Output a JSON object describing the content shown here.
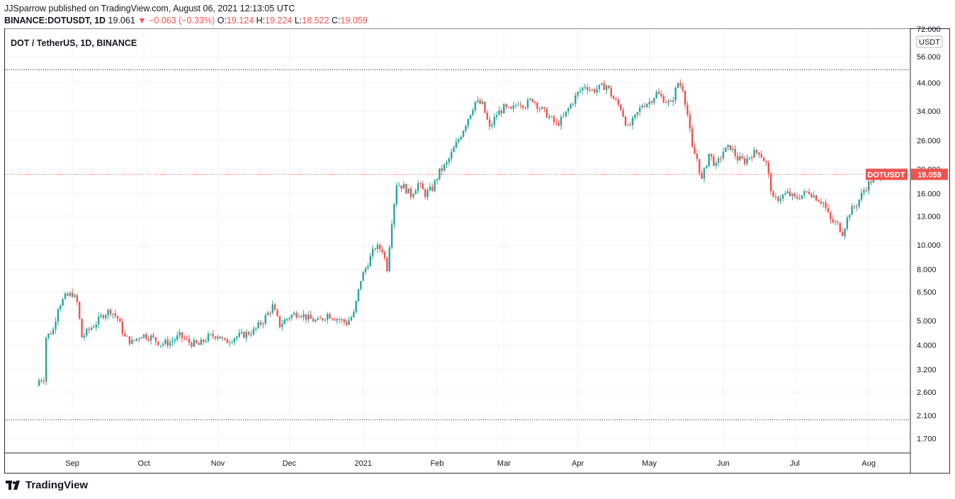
{
  "header": {
    "publish_line": "JJSparrow published on TradingView.com, August 06, 2021 12:13:05 UTC",
    "ticker": "BINANCE:DOTUSDT, 1D",
    "last": "19.061",
    "change": "▼ −0.063 (−0.33%)",
    "o_label": "O:",
    "o_value": "19.124",
    "h_label": "H:",
    "h_value": "19.224",
    "l_label": "L:",
    "l_value": "18.522",
    "c_label": "C:",
    "c_value": "19.059"
  },
  "chart_title": "DOT / TetherUS, 1D, BINANCE",
  "currency_badge": "USDT",
  "price_tag": {
    "symbol": "DOTUSDT",
    "value": "19.059"
  },
  "footer": {
    "brand": "TradingView"
  },
  "colors": {
    "up": "#26a69a",
    "down": "#ef5350",
    "grid": "#f0f3fa",
    "text": "#131722"
  },
  "chart_data": {
    "type": "candlestick",
    "title": "DOT / TetherUS, 1D, BINANCE",
    "y_scale": "log",
    "ylim": [
      1.5,
      72
    ],
    "y_ticks": [
      "72.000",
      "56.000",
      "44.000",
      "34.000",
      "26.000",
      "20.000",
      "16.000",
      "13.000",
      "10.000",
      "8.000",
      "6.500",
      "5.000",
      "4.000",
      "3.200",
      "2.600",
      "2.100",
      "1.700"
    ],
    "x_labels": [
      {
        "label": "Sep",
        "date": "2020-09-01"
      },
      {
        "label": "Oct",
        "date": "2020-10-01"
      },
      {
        "label": "Nov",
        "date": "2020-11-01"
      },
      {
        "label": "Dec",
        "date": "2020-12-01"
      },
      {
        "label": "2021",
        "date": "2021-01-01"
      },
      {
        "label": "Feb",
        "date": "2021-02-01"
      },
      {
        "label": "Mar",
        "date": "2021-03-01"
      },
      {
        "label": "Apr",
        "date": "2021-04-01"
      },
      {
        "label": "May",
        "date": "2021-05-01"
      },
      {
        "label": "Jun",
        "date": "2021-06-01"
      },
      {
        "label": "Jul",
        "date": "2021-07-01"
      },
      {
        "label": "Aug",
        "date": "2021-08-01"
      }
    ],
    "start_date": "2020-08-18",
    "end_date": "2021-08-06",
    "horizontal_lines": [
      {
        "price": 49.6,
        "style": "dotted",
        "color": "#131722"
      },
      {
        "price": 2.02,
        "style": "dotted",
        "color": "#131722"
      },
      {
        "price": 19.059,
        "style": "dotted",
        "color": "#ef5350"
      }
    ],
    "closes": [
      {
        "date": "2020-08-18",
        "close": 2.9
      },
      {
        "date": "2020-08-20",
        "close": 2.95
      },
      {
        "date": "2020-08-21",
        "close": 4.3
      },
      {
        "date": "2020-08-24",
        "close": 4.6
      },
      {
        "date": "2020-08-26",
        "close": 5.7
      },
      {
        "date": "2020-08-29",
        "close": 6.2
      },
      {
        "date": "2020-09-01",
        "close": 6.4
      },
      {
        "date": "2020-09-03",
        "close": 5.9
      },
      {
        "date": "2020-09-05",
        "close": 4.3
      },
      {
        "date": "2020-09-08",
        "close": 4.6
      },
      {
        "date": "2020-09-11",
        "close": 4.9
      },
      {
        "date": "2020-09-14",
        "close": 5.3
      },
      {
        "date": "2020-09-17",
        "close": 5.5
      },
      {
        "date": "2020-09-20",
        "close": 5.1
      },
      {
        "date": "2020-09-23",
        "close": 4.3
      },
      {
        "date": "2020-09-26",
        "close": 4.1
      },
      {
        "date": "2020-09-30",
        "close": 4.4
      },
      {
        "date": "2020-10-04",
        "close": 4.3
      },
      {
        "date": "2020-10-08",
        "close": 4.05
      },
      {
        "date": "2020-10-12",
        "close": 4.1
      },
      {
        "date": "2020-10-16",
        "close": 4.35
      },
      {
        "date": "2020-10-20",
        "close": 4.1
      },
      {
        "date": "2020-10-24",
        "close": 4.0
      },
      {
        "date": "2020-10-28",
        "close": 4.3
      },
      {
        "date": "2020-11-01",
        "close": 4.4
      },
      {
        "date": "2020-11-04",
        "close": 4.1
      },
      {
        "date": "2020-11-08",
        "close": 4.3
      },
      {
        "date": "2020-11-12",
        "close": 4.4
      },
      {
        "date": "2020-11-16",
        "close": 4.55
      },
      {
        "date": "2020-11-20",
        "close": 5.0
      },
      {
        "date": "2020-11-24",
        "close": 5.7
      },
      {
        "date": "2020-11-27",
        "close": 4.8
      },
      {
        "date": "2020-12-01",
        "close": 5.2
      },
      {
        "date": "2020-12-05",
        "close": 5.4
      },
      {
        "date": "2020-12-09",
        "close": 5.1
      },
      {
        "date": "2020-12-13",
        "close": 4.95
      },
      {
        "date": "2020-12-17",
        "close": 5.3
      },
      {
        "date": "2020-12-21",
        "close": 5.1
      },
      {
        "date": "2020-12-25",
        "close": 4.9
      },
      {
        "date": "2020-12-28",
        "close": 5.3
      },
      {
        "date": "2020-12-31",
        "close": 7.3
      },
      {
        "date": "2021-01-03",
        "close": 8.5
      },
      {
        "date": "2021-01-06",
        "close": 9.8
      },
      {
        "date": "2021-01-09",
        "close": 9.6
      },
      {
        "date": "2021-01-11",
        "close": 8.1
      },
      {
        "date": "2021-01-13",
        "close": 12.5
      },
      {
        "date": "2021-01-15",
        "close": 17.5
      },
      {
        "date": "2021-01-18",
        "close": 17.0
      },
      {
        "date": "2021-01-21",
        "close": 15.8
      },
      {
        "date": "2021-01-24",
        "close": 17.5
      },
      {
        "date": "2021-01-27",
        "close": 15.9
      },
      {
        "date": "2021-01-30",
        "close": 16.8
      },
      {
        "date": "2021-02-02",
        "close": 19.5
      },
      {
        "date": "2021-02-05",
        "close": 21.0
      },
      {
        "date": "2021-02-08",
        "close": 24.0
      },
      {
        "date": "2021-02-11",
        "close": 27.5
      },
      {
        "date": "2021-02-14",
        "close": 32.0
      },
      {
        "date": "2021-02-17",
        "close": 37.0
      },
      {
        "date": "2021-02-20",
        "close": 36.0
      },
      {
        "date": "2021-02-23",
        "close": 29.0
      },
      {
        "date": "2021-02-26",
        "close": 33.0
      },
      {
        "date": "2021-03-01",
        "close": 35.0
      },
      {
        "date": "2021-03-04",
        "close": 34.0
      },
      {
        "date": "2021-03-07",
        "close": 37.0
      },
      {
        "date": "2021-03-10",
        "close": 36.0
      },
      {
        "date": "2021-03-13",
        "close": 38.0
      },
      {
        "date": "2021-03-16",
        "close": 35.0
      },
      {
        "date": "2021-03-19",
        "close": 33.0
      },
      {
        "date": "2021-03-23",
        "close": 30.0
      },
      {
        "date": "2021-03-26",
        "close": 32.0
      },
      {
        "date": "2021-03-29",
        "close": 36.0
      },
      {
        "date": "2021-04-01",
        "close": 40.0
      },
      {
        "date": "2021-04-04",
        "close": 43.0
      },
      {
        "date": "2021-04-07",
        "close": 41.0
      },
      {
        "date": "2021-04-10",
        "close": 42.0
      },
      {
        "date": "2021-04-13",
        "close": 43.0
      },
      {
        "date": "2021-04-16",
        "close": 38.0
      },
      {
        "date": "2021-04-19",
        "close": 35.0
      },
      {
        "date": "2021-04-22",
        "close": 29.0
      },
      {
        "date": "2021-04-25",
        "close": 32.0
      },
      {
        "date": "2021-04-28",
        "close": 36.0
      },
      {
        "date": "2021-05-01",
        "close": 37.0
      },
      {
        "date": "2021-05-04",
        "close": 40.0
      },
      {
        "date": "2021-05-07",
        "close": 38.0
      },
      {
        "date": "2021-05-10",
        "close": 36.0
      },
      {
        "date": "2021-05-13",
        "close": 44.0
      },
      {
        "date": "2021-05-15",
        "close": 42.0
      },
      {
        "date": "2021-05-17",
        "close": 33.0
      },
      {
        "date": "2021-05-19",
        "close": 24.0
      },
      {
        "date": "2021-05-21",
        "close": 22.0
      },
      {
        "date": "2021-05-23",
        "close": 18.0
      },
      {
        "date": "2021-05-26",
        "close": 23.0
      },
      {
        "date": "2021-05-29",
        "close": 20.5
      },
      {
        "date": "2021-06-01",
        "close": 23.5
      },
      {
        "date": "2021-06-04",
        "close": 24.5
      },
      {
        "date": "2021-06-07",
        "close": 22.0
      },
      {
        "date": "2021-06-10",
        "close": 21.5
      },
      {
        "date": "2021-06-13",
        "close": 23.0
      },
      {
        "date": "2021-06-16",
        "close": 23.5
      },
      {
        "date": "2021-06-19",
        "close": 21.0
      },
      {
        "date": "2021-06-22",
        "close": 15.0
      },
      {
        "date": "2021-06-25",
        "close": 15.5
      },
      {
        "date": "2021-06-28",
        "close": 16.0
      },
      {
        "date": "2021-07-01",
        "close": 15.3
      },
      {
        "date": "2021-07-04",
        "close": 15.8
      },
      {
        "date": "2021-07-07",
        "close": 16.3
      },
      {
        "date": "2021-07-10",
        "close": 15.4
      },
      {
        "date": "2021-07-13",
        "close": 14.7
      },
      {
        "date": "2021-07-16",
        "close": 12.5
      },
      {
        "date": "2021-07-19",
        "close": 12.0
      },
      {
        "date": "2021-07-21",
        "close": 11.2
      },
      {
        "date": "2021-07-24",
        "close": 13.5
      },
      {
        "date": "2021-07-27",
        "close": 14.5
      },
      {
        "date": "2021-07-30",
        "close": 16.5
      },
      {
        "date": "2021-08-02",
        "close": 18.0
      },
      {
        "date": "2021-08-06",
        "close": 19.059
      }
    ]
  }
}
